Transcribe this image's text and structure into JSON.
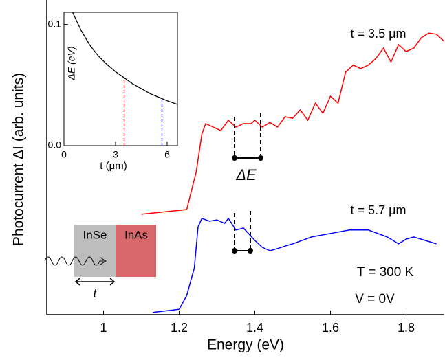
{
  "chart_data": [
    {
      "type": "line",
      "xlabel": "Energy (eV)",
      "ylabel": "Photocurrent ΔI (arb. units)",
      "xlim": [
        0.85,
        1.9
      ],
      "xticks": [
        1.0,
        1.2,
        1.4,
        1.6,
        1.8
      ],
      "ylim": [
        0,
        10
      ],
      "series": [
        {
          "name": "t = 3.5 μm",
          "color": "#ff0000",
          "x": [
            1.1,
            1.22,
            1.245,
            1.26,
            1.27,
            1.29,
            1.31,
            1.33,
            1.35,
            1.37,
            1.39,
            1.4,
            1.42,
            1.44,
            1.46,
            1.48,
            1.5,
            1.52,
            1.54,
            1.56,
            1.58,
            1.6,
            1.62,
            1.64,
            1.66,
            1.68,
            1.7,
            1.72,
            1.74,
            1.76,
            1.78,
            1.8,
            1.82,
            1.84,
            1.86,
            1.88,
            1.9
          ],
          "values": [
            3.19,
            3.34,
            4.54,
            5.74,
            6.07,
            5.96,
            5.85,
            6.18,
            5.96,
            6.07,
            6.07,
            6.18,
            5.96,
            6.11,
            5.96,
            6.29,
            6.24,
            6.51,
            6.18,
            6.72,
            6.4,
            6.94,
            6.72,
            7.71,
            7.93,
            7.82,
            7.93,
            8.14,
            8.47,
            8.03,
            8.58,
            8.36,
            8.47,
            8.8,
            8.95,
            8.91,
            8.69
          ]
        },
        {
          "name": "t = 5.7 μm",
          "color": "#0000ff",
          "x": [
            1.13,
            1.2,
            1.22,
            1.24,
            1.25,
            1.26,
            1.28,
            1.3,
            1.32,
            1.33,
            1.35,
            1.37,
            1.4,
            1.42,
            1.44,
            1.46,
            1.48,
            1.5,
            1.55,
            1.6,
            1.65,
            1.7,
            1.75,
            1.78,
            1.8,
            1.82,
            1.85,
            1.88
          ],
          "values": [
            0.07,
            0.17,
            0.61,
            1.48,
            2.79,
            3.06,
            2.97,
            3.01,
            2.9,
            3.06,
            2.69,
            2.75,
            2.36,
            2.14,
            2.03,
            2.1,
            2.18,
            2.25,
            2.47,
            2.58,
            2.69,
            2.69,
            2.47,
            2.25,
            2.4,
            2.47,
            2.36,
            2.25
          ]
        }
      ],
      "annotations": [
        "ΔE",
        "T = 300 K",
        "V = 0V",
        "InSe",
        "InAs",
        "t"
      ]
    },
    {
      "type": "line",
      "xlabel": "t (μm)",
      "ylabel": "ΔE (eV)",
      "xlim": [
        0,
        6.6
      ],
      "xticks": [
        0,
        3,
        6
      ],
      "ylim": [
        0,
        0.11
      ],
      "yticks": [
        {
          "value": 0,
          "label": "0.0"
        },
        0.1
      ],
      "series": [
        {
          "color": "#000000",
          "x": [
            0.5,
            1,
            1.5,
            2,
            2.5,
            3,
            3.5,
            4,
            4.5,
            5,
            5.5,
            6,
            6.6
          ],
          "values": [
            0.11,
            0.095,
            0.083,
            0.074,
            0.067,
            0.061,
            0.056,
            0.051,
            0.047,
            0.043,
            0.04,
            0.037,
            0.034
          ]
        }
      ],
      "dashed_lines": [
        {
          "x": 3.5,
          "color": "#ff0000"
        },
        {
          "x": 5.7,
          "color": "#0000ff"
        }
      ]
    }
  ]
}
